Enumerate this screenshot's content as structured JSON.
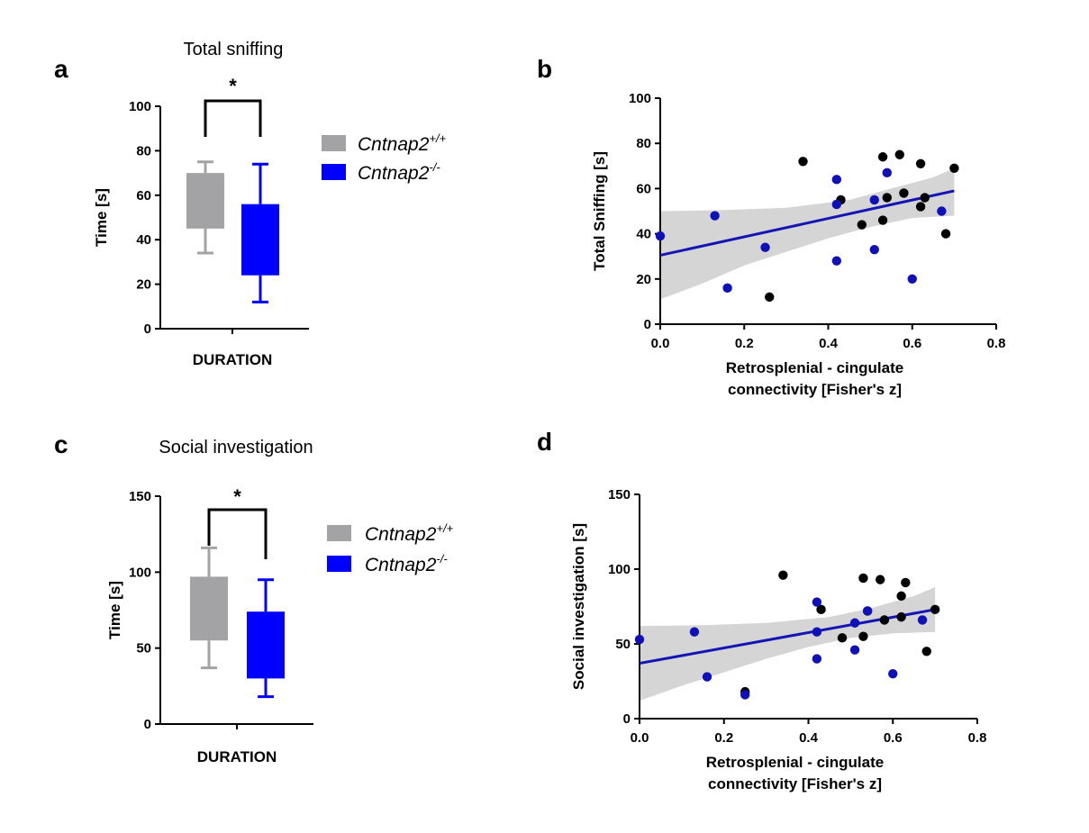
{
  "colors": {
    "wt": "#a3a3a5",
    "ko": "#0000ff",
    "ko_point": "#1010b8",
    "wt_point": "#000000",
    "fit": "#1515b5",
    "band": "#d5d5d5"
  },
  "panels": {
    "a": {
      "letter": "a",
      "title": "Total sniffing"
    },
    "b": {
      "letter": "b"
    },
    "c": {
      "letter": "c",
      "title": "Social investigation"
    },
    "d": {
      "letter": "d"
    }
  },
  "legend": {
    "items": [
      {
        "base": "Cntnap2",
        "sup": "+/+",
        "color": "#a3a3a5"
      },
      {
        "base": "Cntnap2",
        "sup": "-/-",
        "color": "#0000ff"
      }
    ]
  },
  "chart_data": [
    {
      "id": "a",
      "type": "box",
      "title": "Total sniffing",
      "ylabel": "Time [s]",
      "xlabel": "DURATION",
      "ylim": [
        0,
        100
      ],
      "yticks": [
        0,
        20,
        40,
        60,
        80,
        100
      ],
      "significance": "*",
      "series": [
        {
          "name": "Cntnap2+/+",
          "min": 34,
          "q1": 45,
          "q3": 70,
          "max": 75
        },
        {
          "name": "Cntnap2-/-",
          "min": 12,
          "q1": 24,
          "q3": 56,
          "max": 74
        }
      ]
    },
    {
      "id": "b",
      "type": "scatter",
      "xlabel": [
        "Retrosplenial - cingulate",
        "connectivity [Fisher's z]"
      ],
      "ylabel": "Total Sniffing [s]",
      "xlim": [
        0,
        0.8
      ],
      "ylim": [
        0,
        100
      ],
      "xticks": [
        "0.0",
        "0.2",
        "0.4",
        "0.6",
        "0.8"
      ],
      "yticks": [
        0,
        20,
        40,
        60,
        80,
        100
      ],
      "fit": {
        "x": [
          0.0,
          0.7
        ],
        "y": [
          30.5,
          59
        ]
      },
      "band_upper": [
        [
          0.0,
          50
        ],
        [
          0.15,
          50.5
        ],
        [
          0.3,
          51.5
        ],
        [
          0.45,
          55
        ],
        [
          0.55,
          60
        ],
        [
          0.65,
          65
        ],
        [
          0.7,
          69
        ]
      ],
      "band_lower": [
        [
          0.7,
          48
        ],
        [
          0.6,
          47
        ],
        [
          0.5,
          43
        ],
        [
          0.4,
          38
        ],
        [
          0.3,
          32
        ],
        [
          0.2,
          26
        ],
        [
          0.1,
          18
        ],
        [
          0.0,
          11
        ]
      ],
      "series": [
        {
          "name": "Cntnap2+/+",
          "points": [
            [
              0.26,
              12
            ],
            [
              0.34,
              72
            ],
            [
              0.43,
              55
            ],
            [
              0.48,
              44
            ],
            [
              0.53,
              46
            ],
            [
              0.53,
              74
            ],
            [
              0.54,
              56
            ],
            [
              0.58,
              58
            ],
            [
              0.57,
              75
            ],
            [
              0.62,
              52
            ],
            [
              0.62,
              71
            ],
            [
              0.63,
              56
            ],
            [
              0.68,
              40
            ],
            [
              0.7,
              69
            ]
          ]
        },
        {
          "name": "Cntnap2-/-",
          "points": [
            [
              0.0,
              39
            ],
            [
              0.13,
              48
            ],
            [
              0.16,
              16
            ],
            [
              0.25,
              34
            ],
            [
              0.42,
              53
            ],
            [
              0.42,
              64
            ],
            [
              0.42,
              28
            ],
            [
              0.51,
              55
            ],
            [
              0.51,
              33
            ],
            [
              0.54,
              67
            ],
            [
              0.6,
              20
            ],
            [
              0.67,
              50
            ]
          ]
        }
      ]
    },
    {
      "id": "c",
      "type": "box",
      "title": "Social investigation",
      "ylabel": "Time [s]",
      "xlabel": "DURATION",
      "ylim": [
        0,
        150
      ],
      "yticks": [
        0,
        50,
        100,
        150
      ],
      "significance": "*",
      "series": [
        {
          "name": "Cntnap2+/+",
          "min": 37,
          "q1": 55,
          "q3": 97,
          "max": 116
        },
        {
          "name": "Cntnap2-/-",
          "min": 18,
          "q1": 30,
          "q3": 74,
          "max": 95
        }
      ]
    },
    {
      "id": "d",
      "type": "scatter",
      "xlabel": [
        "Retrosplenial - cingulate",
        "connectivity [Fisher's z]"
      ],
      "ylabel": "Social investigation [s]",
      "xlim": [
        0,
        0.8
      ],
      "ylim": [
        0,
        150
      ],
      "xticks": [
        "0.0",
        "0.2",
        "0.4",
        "0.6",
        "0.8"
      ],
      "yticks": [
        0,
        50,
        100,
        150
      ],
      "fit": {
        "x": [
          0.0,
          0.7
        ],
        "y": [
          37,
          73
        ]
      },
      "band_upper": [
        [
          0.0,
          62
        ],
        [
          0.15,
          62.5
        ],
        [
          0.3,
          64
        ],
        [
          0.45,
          68
        ],
        [
          0.55,
          74
        ],
        [
          0.65,
          82
        ],
        [
          0.7,
          88
        ]
      ],
      "band_lower": [
        [
          0.7,
          58
        ],
        [
          0.6,
          57
        ],
        [
          0.5,
          54
        ],
        [
          0.4,
          48
        ],
        [
          0.3,
          40
        ],
        [
          0.2,
          31
        ],
        [
          0.1,
          22
        ],
        [
          0.0,
          12
        ]
      ],
      "series": [
        {
          "name": "Cntnap2+/+",
          "points": [
            [
              0.25,
              18
            ],
            [
              0.34,
              96
            ],
            [
              0.43,
              73
            ],
            [
              0.48,
              54
            ],
            [
              0.53,
              55
            ],
            [
              0.53,
              94
            ],
            [
              0.54,
              72
            ],
            [
              0.58,
              66
            ],
            [
              0.57,
              93
            ],
            [
              0.62,
              82
            ],
            [
              0.62,
              68
            ],
            [
              0.63,
              91
            ],
            [
              0.68,
              45
            ],
            [
              0.7,
              73
            ]
          ]
        },
        {
          "name": "Cntnap2-/-",
          "points": [
            [
              0.0,
              53
            ],
            [
              0.13,
              58
            ],
            [
              0.16,
              28
            ],
            [
              0.25,
              16
            ],
            [
              0.42,
              78
            ],
            [
              0.42,
              58
            ],
            [
              0.42,
              40
            ],
            [
              0.51,
              64
            ],
            [
              0.51,
              46
            ],
            [
              0.54,
              72
            ],
            [
              0.6,
              30
            ],
            [
              0.67,
              66
            ]
          ]
        }
      ]
    }
  ]
}
